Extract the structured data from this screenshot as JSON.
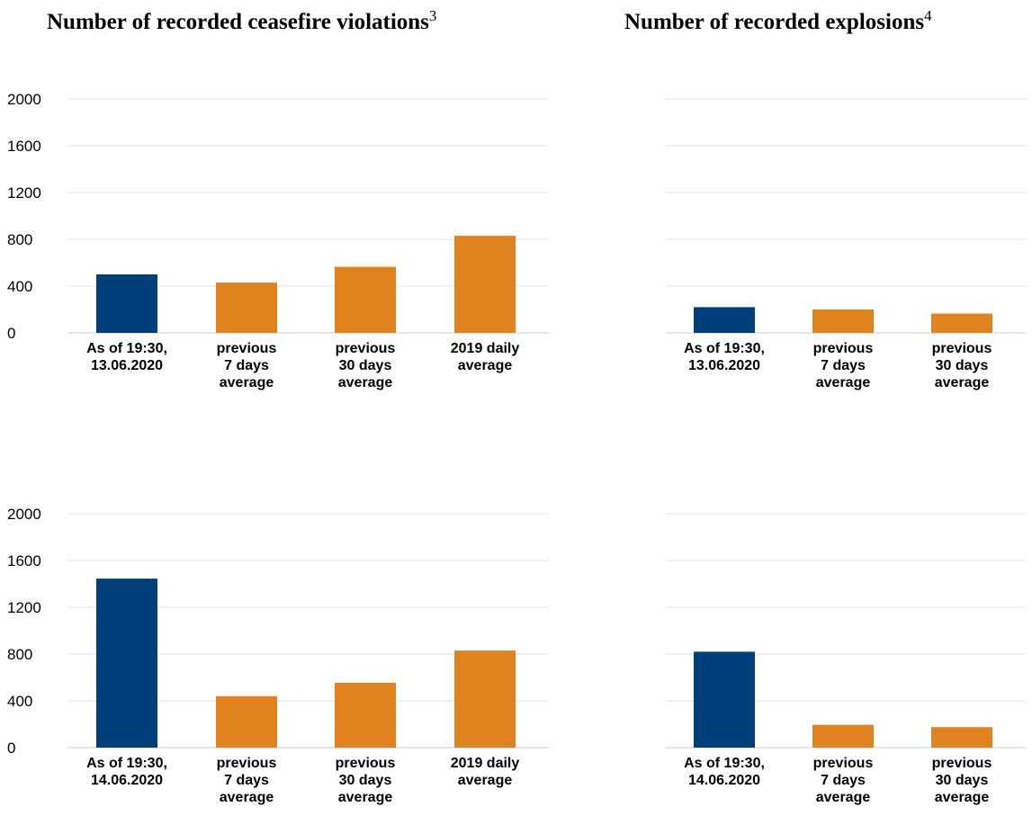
{
  "headings": {
    "left": "Number of recorded ceasefire violations",
    "left_note": "3",
    "right": "Number of recorded explosions",
    "right_note": "4"
  },
  "colors": {
    "current": "#003f7a",
    "average": "#e0831f"
  },
  "chart_data": [
    {
      "type": "bar",
      "title": "Number of recorded ceasefire violations",
      "categories": [
        "As of 19:30,\n13.06.2020",
        "previous\n7 days\naverage",
        "previous\n30 days\naverage",
        "2019 daily\naverage"
      ],
      "values": [
        500,
        430,
        565,
        830
      ],
      "bar_colors": [
        "#003f7a",
        "#e0831f",
        "#e0831f",
        "#e0831f"
      ],
      "ylim": [
        0,
        2000
      ],
      "yticks": [
        0,
        400,
        800,
        1200,
        1600,
        2000
      ],
      "grid": true
    },
    {
      "type": "bar",
      "title": "Number of recorded explosions",
      "categories": [
        "As of 19:30,\n13.06.2020",
        "previous\n7 days\naverage",
        "previous\n30 days\naverage"
      ],
      "values": [
        220,
        200,
        165
      ],
      "bar_colors": [
        "#003f7a",
        "#e0831f",
        "#e0831f"
      ],
      "ylim": [
        0,
        2000
      ],
      "grid": true
    },
    {
      "type": "bar",
      "title": "Number of recorded ceasefire violations",
      "categories": [
        "As of 19:30,\n14.06.2020",
        "previous\n7 days\naverage",
        "previous\n30 days\naverage",
        "2019 daily\naverage"
      ],
      "values": [
        1445,
        440,
        555,
        830
      ],
      "bar_colors": [
        "#003f7a",
        "#e0831f",
        "#e0831f",
        "#e0831f"
      ],
      "ylim": [
        0,
        2000
      ],
      "yticks": [
        0,
        400,
        800,
        1200,
        1600,
        2000
      ],
      "grid": true
    },
    {
      "type": "bar",
      "title": "Number of recorded explosions",
      "categories": [
        "As of 19:30,\n14.06.2020",
        "previous\n7 days\naverage",
        "previous\n30 days\naverage"
      ],
      "values": [
        820,
        195,
        175
      ],
      "bar_colors": [
        "#003f7a",
        "#e0831f",
        "#e0831f"
      ],
      "ylim": [
        0,
        2000
      ],
      "grid": true
    }
  ]
}
